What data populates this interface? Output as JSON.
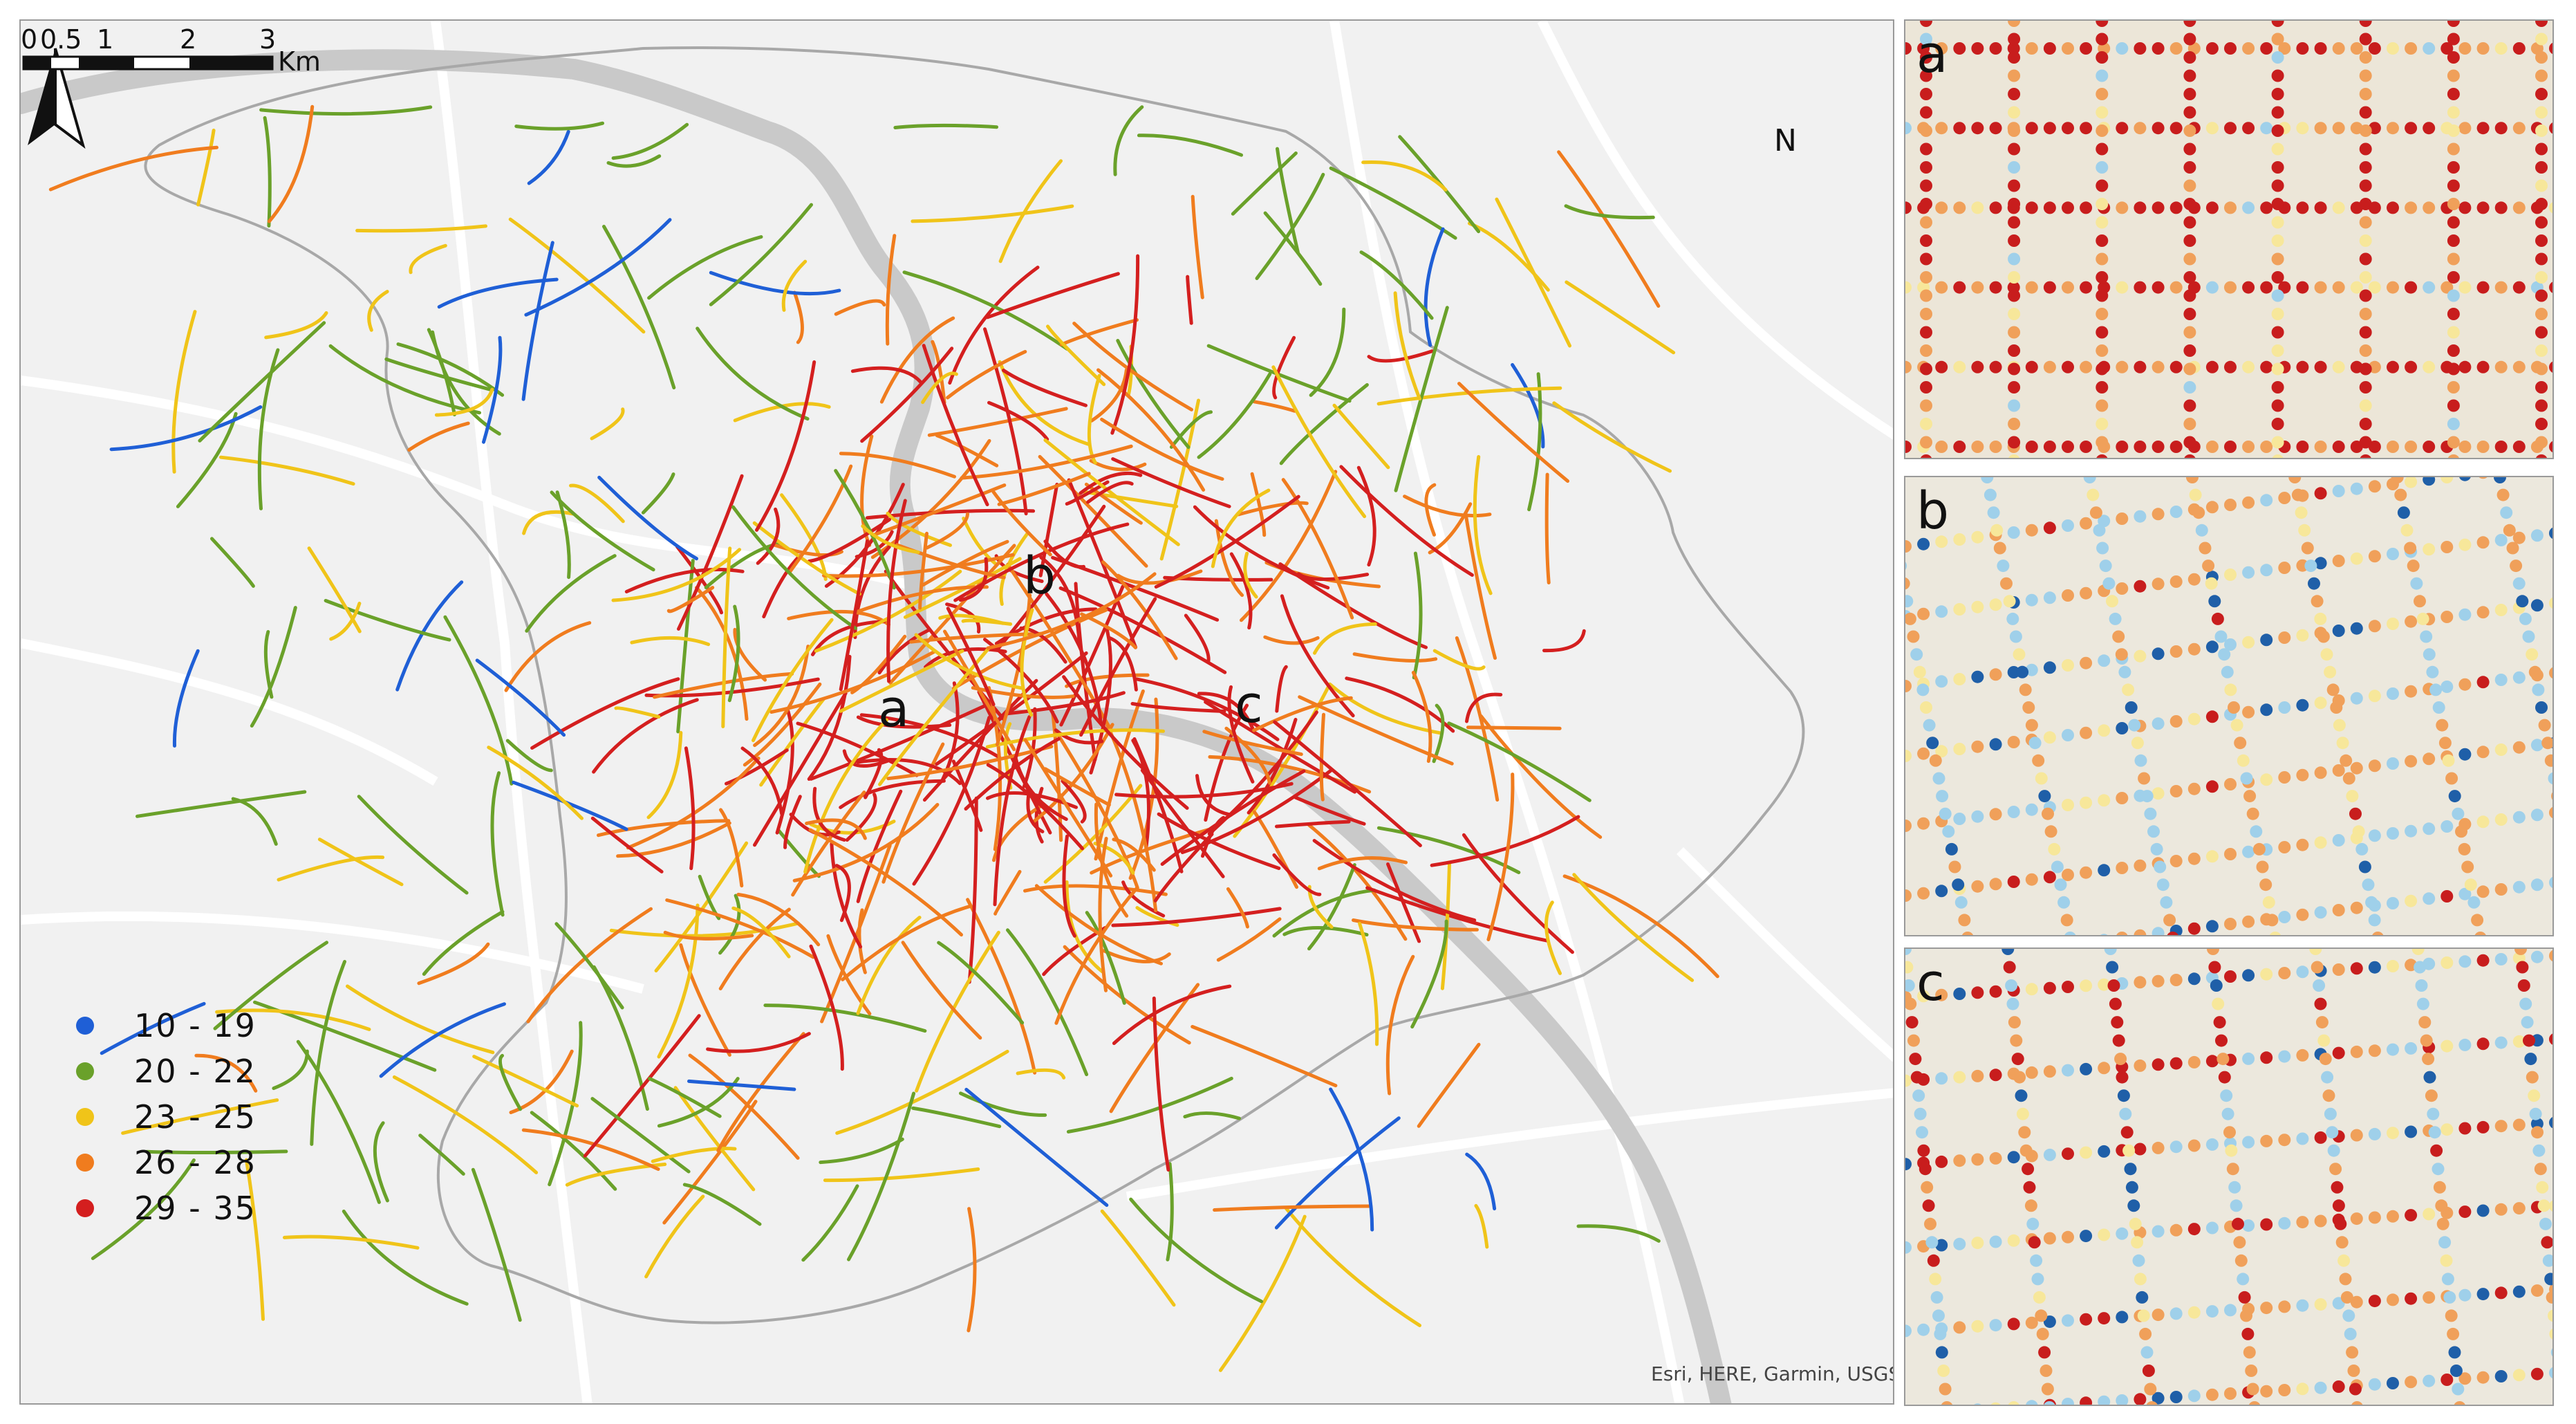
{
  "main_map": {
    "zone_labels": [
      "a",
      "b",
      "c"
    ],
    "north_label": "N",
    "attribution": "Esri, HERE, Garmin, USGS, E",
    "scale": {
      "ticks": [
        "0",
        "0.5",
        "1",
        "2",
        "3"
      ],
      "unit": "Km"
    }
  },
  "legend": {
    "items": [
      {
        "label": "10 - 19",
        "color": "#1f5fd6"
      },
      {
        "label": "20 - 22",
        "color": "#6aa12a"
      },
      {
        "label": "23 - 25",
        "color": "#f0c419"
      },
      {
        "label": "26 - 28",
        "color": "#f07c1e"
      },
      {
        "label": "29 - 35",
        "color": "#d41f1f"
      }
    ]
  },
  "insets": [
    {
      "label": "a"
    },
    {
      "label": "b"
    },
    {
      "label": "c"
    }
  ],
  "colors": {
    "basemap": "#f1f1f1",
    "major_road": "#ffffff",
    "river": "#c9c9c9",
    "boundary": "#a8a8a8",
    "inset_light_blue": "#9fd0ea",
    "inset_light_yellow": "#f7e79a"
  }
}
